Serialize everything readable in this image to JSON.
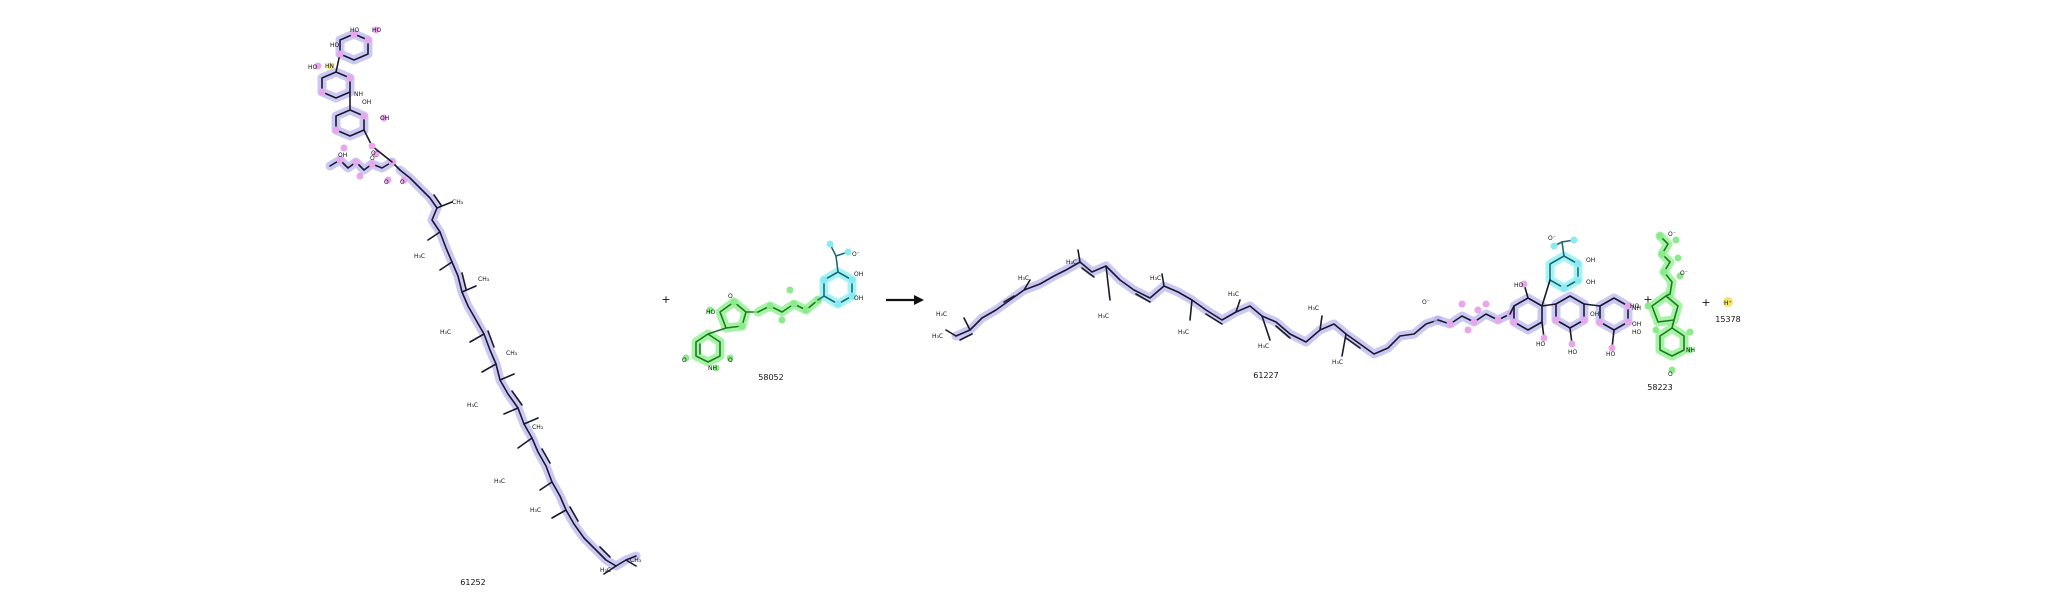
{
  "reaction": {
    "reactants": [
      {
        "id_label": "61252",
        "scheme": "blue-purple"
      },
      {
        "id_label": "58052",
        "scheme": "green-cyan"
      }
    ],
    "products": [
      {
        "id_label": "61227",
        "scheme": "blue-purple-cyan"
      },
      {
        "id_label": "58223",
        "scheme": "green"
      },
      {
        "id_label": "15378",
        "scheme": "yellow"
      }
    ],
    "operators": {
      "plus": "+",
      "arrow": "reaction-arrow"
    },
    "atom_labels": {
      "methyl": "H₃C",
      "methyl_right": "CH₃",
      "hydroxyl": "OH",
      "hydroxyl_left": "HO",
      "oxygen": "O",
      "oxide": "O⁻",
      "nh": "NH",
      "hn": "HN",
      "proton": "H⁺"
    },
    "highlight_colors": {
      "blue": "#b9b6f0",
      "pink": "#e9a6ea",
      "cyan": "#8be9ef",
      "green": "#8bea8b",
      "yellow": "#f3e46a"
    }
  }
}
